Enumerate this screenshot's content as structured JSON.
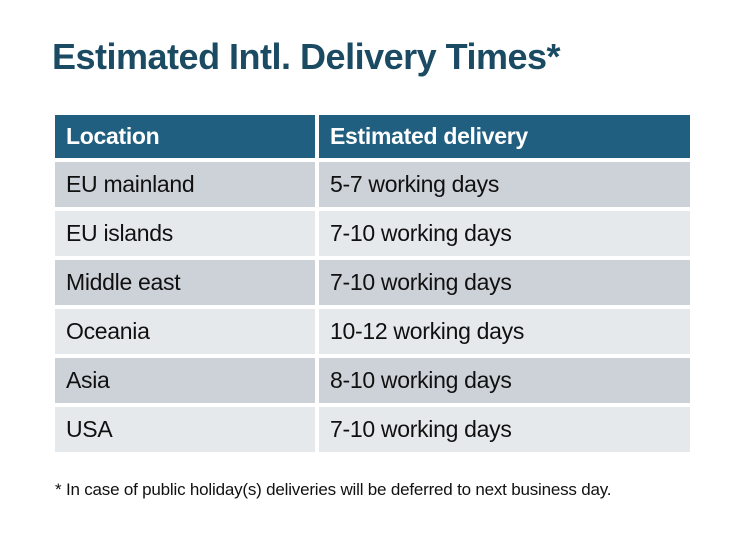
{
  "title": "Estimated Intl. Delivery Times*",
  "table": {
    "headers": [
      "Location",
      "Estimated delivery"
    ],
    "rows": [
      {
        "location": "EU mainland",
        "delivery": "5-7 working days"
      },
      {
        "location": "EU islands",
        "delivery": "7-10 working days"
      },
      {
        "location": "Middle east",
        "delivery": "7-10 working days"
      },
      {
        "location": "Oceania",
        "delivery": "10-12 working days"
      },
      {
        "location": "Asia",
        "delivery": "8-10 working days"
      },
      {
        "location": "USA",
        "delivery": "7-10 working days"
      }
    ]
  },
  "footnote": "* In case of public holiday(s) deliveries will be deferred to next business day.",
  "colors": {
    "title_text": "#1b4b63",
    "header_bg": "#215f80",
    "header_text": "#ffffff",
    "row_dark": "#cdd2d9",
    "row_light": "#e6e9eb",
    "body_text": "#101010",
    "page_bg": "#ffffff"
  },
  "chart_data": {
    "type": "table",
    "title": "Estimated Intl. Delivery Times*",
    "columns": [
      "Location",
      "Estimated delivery"
    ],
    "rows": [
      [
        "EU mainland",
        "5-7 working days"
      ],
      [
        "EU islands",
        "7-10 working days"
      ],
      [
        "Middle east",
        "7-10 working days"
      ],
      [
        "Oceania",
        "10-12 working days"
      ],
      [
        "Asia",
        "8-10 working days"
      ],
      [
        "USA",
        "7-10 working days"
      ]
    ],
    "footnote": "* In case of public holiday(s) deliveries will be deferred to next business day.",
    "layout": {
      "header_style": "solid dark teal band, white bold text",
      "row_striping": "alternating dark/light gray starting dark",
      "gutters": "white 4px gaps between all cells"
    }
  }
}
